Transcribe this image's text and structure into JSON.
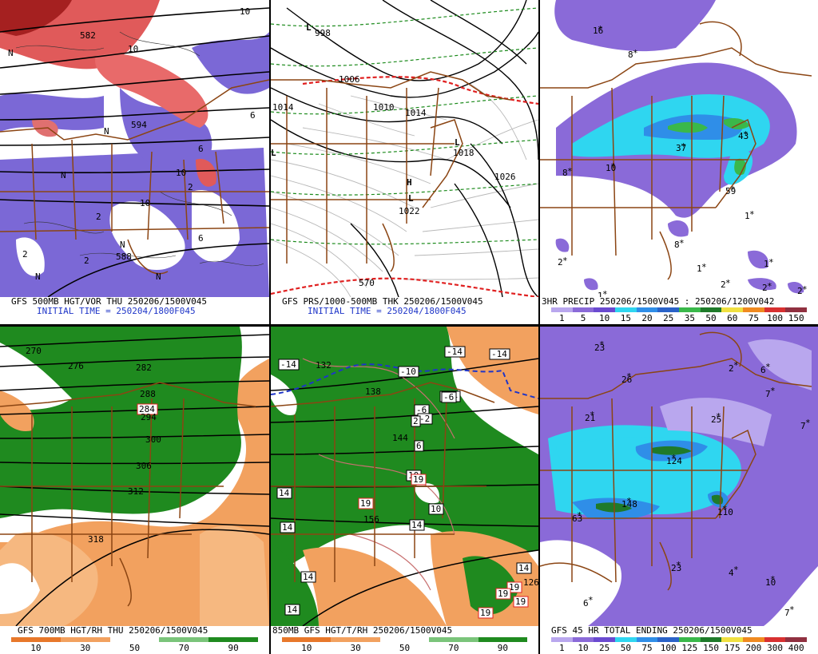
{
  "colors": {
    "state_border": "#8b4513",
    "vort_purple": "#7b68d6",
    "vort_red": "#d83a3a",
    "rh_green": "#1f8a1f",
    "dry_orange": "#f2a15f",
    "precip_purple": "#8a6ad8",
    "precip_cyan": "#2fd6f0",
    "precip_blue": "#2f8ee8"
  },
  "panels": [
    {
      "id": "500mb",
      "caption_line1": "GFS 500MB HGT/VOR THU 250206/1500V045",
      "caption_line2": "INITIAL TIME = 250204/1800F045",
      "labels": [
        "10",
        "10",
        "10",
        "10",
        "6",
        "6",
        "6",
        "2",
        "2",
        "2",
        "2",
        "N",
        "N",
        "N",
        "N",
        "N",
        "N",
        "582",
        "588",
        "594"
      ]
    },
    {
      "id": "surface",
      "caption_line1": "GFS PRS/1000-500MB THK 250206/1500V045",
      "caption_line2": "INITIAL TIME = 250204/1800F045",
      "labels": [
        "998",
        "1006",
        "1014",
        "1010",
        "1014",
        "1018",
        "1022",
        "1026",
        "570"
      ],
      "lows": [
        "L",
        "L",
        "L",
        "L"
      ],
      "highs": [
        "H"
      ]
    },
    {
      "id": "3hr_precip",
      "caption_line1": "3HR PRECIP 250206/1500V045 : 250206/1200V042",
      "scale": [
        "1",
        "5",
        "10",
        "15",
        "20",
        "25",
        "35",
        "50",
        "60",
        "75",
        "100",
        "150"
      ],
      "scale_colors": [
        "#b9a7ee",
        "#8a6ad8",
        "#6a4ad0",
        "#2fd6f0",
        "#2f8ee8",
        "#2a62c8",
        "#3ab84a",
        "#1f7a2a",
        "#f0e040",
        "#f08a20",
        "#d83030",
        "#903040"
      ],
      "values": [
        "16",
        "8",
        "8",
        "10",
        "37",
        "43",
        "59",
        "1",
        "8",
        "2",
        "1",
        "1",
        "2",
        "2",
        "2",
        "1"
      ]
    },
    {
      "id": "700mb",
      "caption_line1": "GFS 700MB HGT/RH THU 250206/1500V045",
      "scale": [
        "10",
        "30",
        "50",
        "70",
        "90"
      ],
      "scale_colors": [
        "#e8782a",
        "#f2a15f",
        "#ffffff",
        "#7ac47a",
        "#1f8a1f"
      ],
      "labels": [
        "270",
        "276",
        "282",
        "288",
        "284",
        "294",
        "300",
        "306",
        "312",
        "318"
      ]
    },
    {
      "id": "850mb",
      "caption_line1": "850MB GFS HGT/T/RH 250206/1500V045",
      "scale": [
        "10",
        "30",
        "50",
        "70",
        "90"
      ],
      "scale_colors": [
        "#e8782a",
        "#f2a15f",
        "#ffffff",
        "#7ac47a",
        "#1f8a1f"
      ],
      "labels": [
        "-14",
        "-14",
        "-14",
        "-14",
        "-10",
        "-6",
        "-6",
        "-2",
        "2",
        "6",
        "10",
        "10",
        "14",
        "14",
        "14",
        "14",
        "14",
        "14",
        "19",
        "19",
        "19",
        "19",
        "19",
        "19",
        "126",
        "132",
        "138",
        "144",
        "156"
      ]
    },
    {
      "id": "45hr_total",
      "caption_line1": "GFS 45 HR TOTAL ENDING 250206/1500V045",
      "scale": [
        "1",
        "10",
        "25",
        "50",
        "75",
        "100",
        "125",
        "150",
        "175",
        "200",
        "300",
        "400"
      ],
      "scale_colors": [
        "#b9a7ee",
        "#8a6ad8",
        "#6a4ad0",
        "#2fd6f0",
        "#2f8ee8",
        "#2a62c8",
        "#3ab84a",
        "#1f7a2a",
        "#f0e040",
        "#f08a20",
        "#d83030",
        "#903040"
      ],
      "values": [
        "23",
        "26",
        "2",
        "6",
        "7",
        "7",
        "21",
        "25",
        "124",
        "148",
        "110",
        "63",
        "23",
        "4",
        "10",
        "6",
        "7"
      ]
    }
  ]
}
